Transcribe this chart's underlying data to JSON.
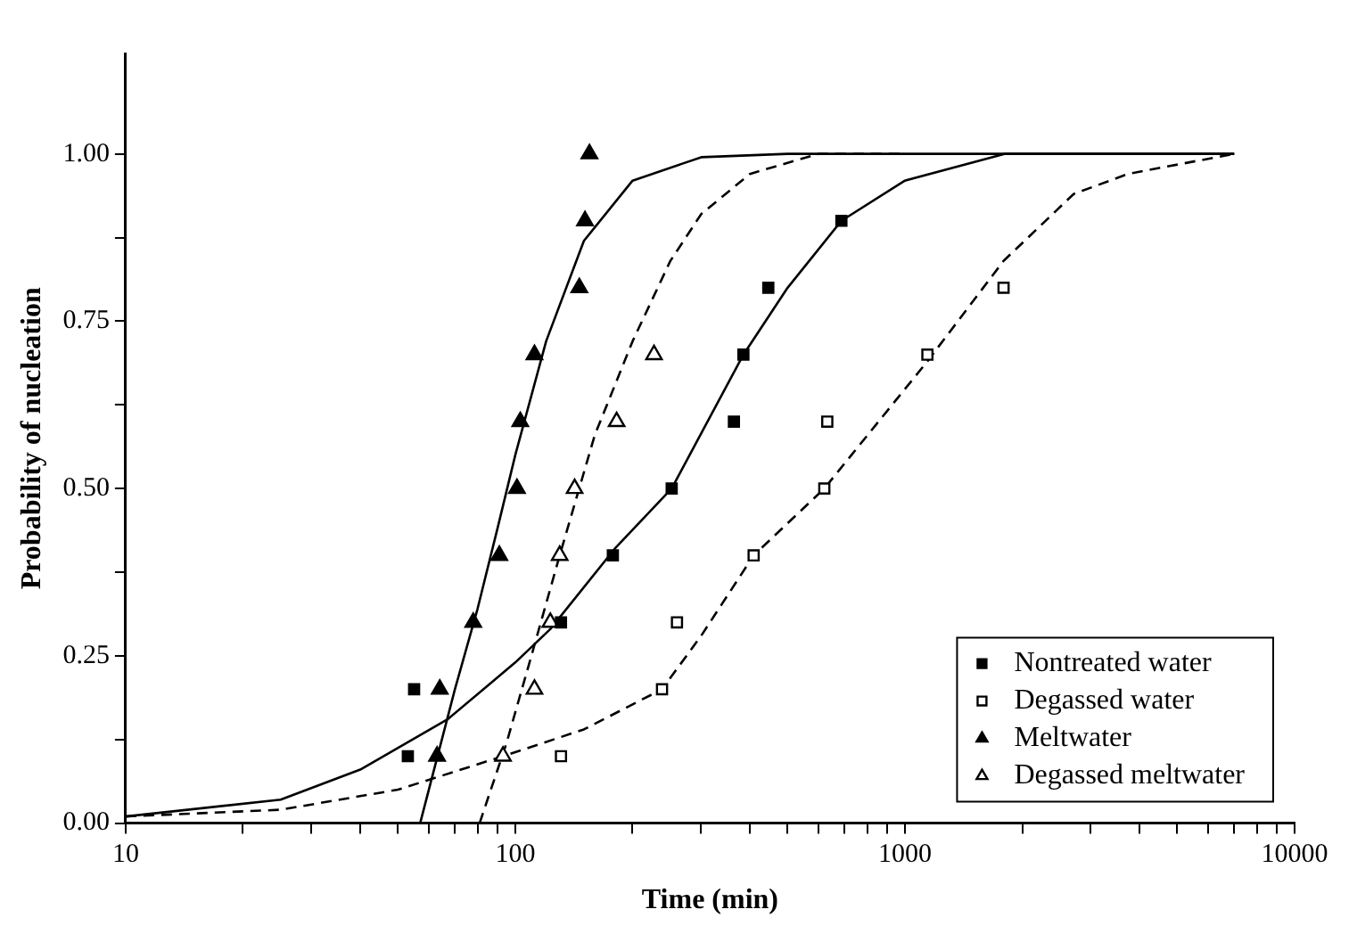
{
  "chart_data": {
    "type": "scatter",
    "xlabel": "Time (min)",
    "ylabel": "Probability of nucleation",
    "log": "x",
    "grid": false,
    "legend": "bottom right",
    "xlim": [
      10,
      10000
    ],
    "xticks": [
      10,
      {
        "value": 20,
        "label": null
      },
      {
        "value": 30,
        "label": null
      },
      {
        "value": 40,
        "label": null
      },
      {
        "value": 50,
        "label": null
      },
      {
        "value": 60,
        "label": null
      },
      {
        "value": 70,
        "label": null
      },
      {
        "value": 80,
        "label": null
      },
      {
        "value": 90,
        "label": null
      },
      100,
      {
        "value": 200,
        "label": null
      },
      {
        "value": 300,
        "label": null
      },
      {
        "value": 400,
        "label": null
      },
      {
        "value": 500,
        "label": null
      },
      {
        "value": 600,
        "label": null
      },
      {
        "value": 700,
        "label": null
      },
      {
        "value": 800,
        "label": null
      },
      {
        "value": 900,
        "label": null
      },
      1000,
      {
        "value": 2000,
        "label": null
      },
      {
        "value": 3000,
        "label": null
      },
      {
        "value": 4000,
        "label": null
      },
      {
        "value": 5000,
        "label": null
      },
      {
        "value": 6000,
        "label": null
      },
      {
        "value": 7000,
        "label": null
      },
      {
        "value": 8000,
        "label": null
      },
      {
        "value": 9000,
        "label": null
      },
      10000
    ],
    "ylim": [
      0,
      1.15
    ],
    "yticks": [
      {
        "value": 0,
        "label": "0.00"
      },
      {
        "value": 0.125,
        "label": null
      },
      {
        "value": 0.25,
        "label": "0.25"
      },
      {
        "value": 0.375,
        "label": null
      },
      {
        "value": 0.5,
        "label": "0.50"
      },
      {
        "value": 0.625,
        "label": null
      },
      {
        "value": 0.75,
        "label": "0.75"
      },
      {
        "value": 0.875,
        "label": null
      },
      {
        "value": 1,
        "label": "1.00"
      }
    ],
    "series": [
      {
        "name": "Nontreated water",
        "type": "scatter",
        "marker": "square",
        "color": "#000000",
        "x": [
          53,
          55,
          131,
          178,
          252,
          364,
          385,
          446,
          687
        ],
        "values": [
          0.1,
          0.2,
          0.3,
          0.4,
          0.5,
          0.6,
          0.7,
          0.8,
          0.9
        ]
      },
      {
        "name": "Degassed water",
        "type": "scatter",
        "marker": "square",
        "color": "#000000",
        "x": [
          131,
          238,
          260,
          409,
          621,
          632,
          1142,
          1791
        ],
        "values": [
          0.1,
          0.2,
          0.3,
          0.4,
          0.5,
          0.6,
          0.7,
          0.8
        ]
      },
      {
        "name": "Meltwater",
        "type": "scatter",
        "marker": "triangle",
        "color": "#000000",
        "x": [
          63,
          64,
          78,
          91,
          101,
          103,
          112,
          146,
          151,
          155
        ],
        "values": [
          0.1,
          0.2,
          0.3,
          0.4,
          0.5,
          0.6,
          0.7,
          0.8,
          0.9,
          1.0
        ]
      },
      {
        "name": "Degassed meltwater",
        "type": "scatter",
        "marker": "triangle",
        "color": "#000000",
        "x": [
          93,
          112,
          123,
          130,
          142,
          182,
          227
        ],
        "values": [
          0.1,
          0.2,
          0.3,
          0.4,
          0.5,
          0.6,
          0.7
        ]
      },
      {
        "type": "line",
        "marker": "none",
        "line_style": "solid",
        "color": "#000000",
        "x": [
          10,
          25,
          40,
          67,
          100,
          123,
          180,
          252,
          385,
          500,
          687,
          1000,
          1800,
          7000
        ],
        "values": [
          0.01,
          0.035,
          0.08,
          0.155,
          0.24,
          0.29,
          0.41,
          0.5,
          0.7,
          0.8,
          0.9,
          0.96,
          1.0,
          1.0
        ]
      },
      {
        "type": "line",
        "marker": "none",
        "line_style": "dashed",
        "color": "#000000",
        "x": [
          10,
          25,
          50,
          93,
          150,
          238,
          300,
          409,
          621,
          1142,
          1791,
          2710,
          3733,
          7000
        ],
        "values": [
          0.01,
          0.02,
          0.05,
          0.1,
          0.14,
          0.2,
          0.28,
          0.4,
          0.5,
          0.69,
          0.84,
          0.94,
          0.97,
          1.0
        ]
      },
      {
        "type": "line",
        "marker": "none",
        "line_style": "solid",
        "color": "#000000",
        "x": [
          57,
          70,
          80,
          90,
          100,
          120,
          150,
          200,
          300,
          500,
          7000
        ],
        "values": [
          0,
          0.2,
          0.32,
          0.44,
          0.55,
          0.72,
          0.87,
          0.96,
          0.995,
          1.0,
          1.0
        ]
      },
      {
        "type": "line",
        "marker": "none",
        "line_style": "dashed",
        "color": "#000000",
        "x": [
          81,
          95,
          110,
          130,
          160,
          200,
          250,
          300,
          400,
          600,
          1000
        ],
        "values": [
          0,
          0.12,
          0.25,
          0.4,
          0.58,
          0.72,
          0.84,
          0.91,
          0.97,
          1.0,
          1.0
        ]
      }
    ]
  }
}
